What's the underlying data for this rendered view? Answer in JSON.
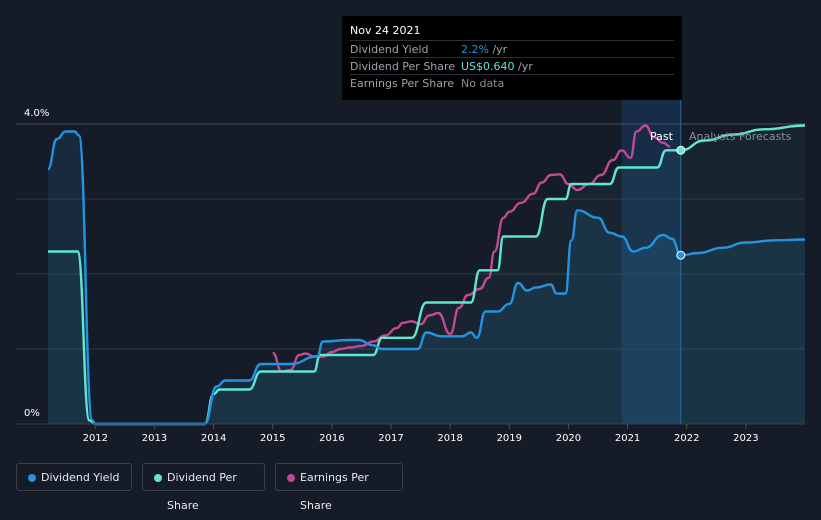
{
  "colors": {
    "background": "#151b27",
    "dividend_yield": "#2394df",
    "dividend_per_share": "#5ee8d2",
    "earnings_per_share": "#c24a92",
    "past_highlight": "#1a3a63",
    "gridline": "#2e3440"
  },
  "tooltip": {
    "date": "Nov 24 2021",
    "rows": [
      {
        "label": "Dividend Yield",
        "value": "2.2%",
        "unit": " /yr",
        "color": "#2394df"
      },
      {
        "label": "Dividend Per Share",
        "value": "US$0.640",
        "unit": " /yr",
        "color": "#5ee8d2"
      },
      {
        "label": "Earnings Per Share",
        "value": "No data",
        "unit": "",
        "color": "#8a8f98"
      }
    ]
  },
  "labels": {
    "past": "Past",
    "forecast": "Analysts Forecasts"
  },
  "legend": [
    {
      "label": "Dividend Yield",
      "color": "#2394df"
    },
    {
      "label": "Dividend Per Share",
      "color": "#5ee8d2"
    },
    {
      "label": "Earnings Per Share",
      "color": "#c24a92"
    }
  ],
  "chart_data": {
    "type": "line",
    "title": "",
    "xlabel": "",
    "ylabel": "",
    "xlim": [
      2011.2,
      2024.0
    ],
    "ylim": [
      0,
      4.0
    ],
    "y_tick_labels": [
      "4.0%",
      "0%"
    ],
    "x_tick_labels": [
      "2012",
      "2013",
      "2014",
      "2015",
      "2016",
      "2017",
      "2018",
      "2019",
      "2020",
      "2021",
      "2022",
      "2023"
    ],
    "x_ticks": [
      2012,
      2013,
      2014,
      2015,
      2016,
      2017,
      2018,
      2019,
      2020,
      2021,
      2022,
      2023
    ],
    "grid": true,
    "past_region": [
      2020.9,
      2021.9
    ],
    "marker_x": 2021.9,
    "series": [
      {
        "name": "Dividend Yield",
        "x": [
          2011.2,
          2011.35,
          2011.5,
          2011.65,
          2011.72,
          2011.95,
          2012.0,
          2013.0,
          2013.85,
          2014.05,
          2014.2,
          2014.6,
          2014.8,
          2015.3,
          2015.75,
          2015.85,
          2016.3,
          2016.45,
          2016.7,
          2016.85,
          2017.3,
          2017.45,
          2017.6,
          2017.85,
          2018.2,
          2018.35,
          2018.45,
          2018.6,
          2018.8,
          2019.0,
          2019.15,
          2019.3,
          2019.45,
          2019.7,
          2019.8,
          2019.95,
          2020.05,
          2020.15,
          2020.5,
          2020.7,
          2020.9,
          2021.1,
          2021.3,
          2021.6,
          2021.75,
          2021.9,
          2022.2,
          2022.6,
          2023.0,
          2023.5,
          2024.0
        ],
        "values": [
          3.4,
          3.8,
          3.9,
          3.9,
          3.85,
          0.05,
          0.0,
          0.0,
          0.0,
          0.5,
          0.58,
          0.58,
          0.8,
          0.8,
          0.9,
          1.1,
          1.12,
          1.12,
          1.05,
          1.0,
          1.0,
          1.0,
          1.22,
          1.17,
          1.17,
          1.22,
          1.15,
          1.5,
          1.5,
          1.6,
          1.88,
          1.78,
          1.82,
          1.86,
          1.74,
          1.74,
          2.45,
          2.85,
          2.75,
          2.55,
          2.5,
          2.3,
          2.35,
          2.52,
          2.47,
          2.25,
          2.28,
          2.35,
          2.42,
          2.45,
          2.46
        ],
        "forecast_from": 2021.9
      },
      {
        "name": "Dividend Per Share",
        "x": [
          2011.2,
          2011.7,
          2011.9,
          2012.0,
          2013.0,
          2013.85,
          2014.0,
          2014.1,
          2014.6,
          2014.8,
          2015.7,
          2015.8,
          2016.7,
          2016.85,
          2017.35,
          2017.6,
          2018.35,
          2018.5,
          2018.8,
          2018.9,
          2019.45,
          2019.65,
          2019.95,
          2020.05,
          2020.7,
          2020.85,
          2021.5,
          2021.65,
          2021.9,
          2022.3,
          2022.8,
          2023.3,
          2024.0
        ],
        "values": [
          2.3,
          2.3,
          0.05,
          0.0,
          0.0,
          0.0,
          0.4,
          0.46,
          0.46,
          0.7,
          0.7,
          0.92,
          0.92,
          1.15,
          1.15,
          1.62,
          1.62,
          2.05,
          2.05,
          2.5,
          2.5,
          3.0,
          3.0,
          3.2,
          3.2,
          3.42,
          3.42,
          3.65,
          3.65,
          3.78,
          3.86,
          3.93,
          3.98
        ],
        "forecast_from": 2021.9
      },
      {
        "name": "Earnings Per Share",
        "x": [
          2015.0,
          2015.15,
          2015.3,
          2015.45,
          2015.55,
          2015.7,
          2015.85,
          2016.0,
          2016.15,
          2016.3,
          2016.5,
          2016.7,
          2016.9,
          2017.1,
          2017.2,
          2017.35,
          2017.5,
          2017.65,
          2017.8,
          2018.0,
          2018.15,
          2018.3,
          2018.5,
          2018.65,
          2018.75,
          2018.9,
          2019.0,
          2019.2,
          2019.4,
          2019.55,
          2019.7,
          2019.85,
          2020.0,
          2020.15,
          2020.35,
          2020.55,
          2020.75,
          2020.9,
          2021.05,
          2021.15,
          2021.3,
          2021.45,
          2021.6,
          2021.72
        ],
        "values": [
          0.95,
          0.7,
          0.72,
          0.92,
          0.94,
          0.9,
          0.9,
          0.96,
          1.0,
          1.02,
          1.04,
          1.1,
          1.18,
          1.28,
          1.35,
          1.37,
          1.33,
          1.45,
          1.48,
          1.2,
          1.55,
          1.72,
          1.8,
          1.95,
          2.3,
          2.75,
          2.83,
          2.95,
          3.07,
          3.22,
          3.32,
          3.33,
          3.2,
          3.12,
          3.2,
          3.32,
          3.52,
          3.65,
          3.55,
          3.9,
          3.98,
          3.82,
          3.75,
          3.7
        ]
      }
    ]
  }
}
